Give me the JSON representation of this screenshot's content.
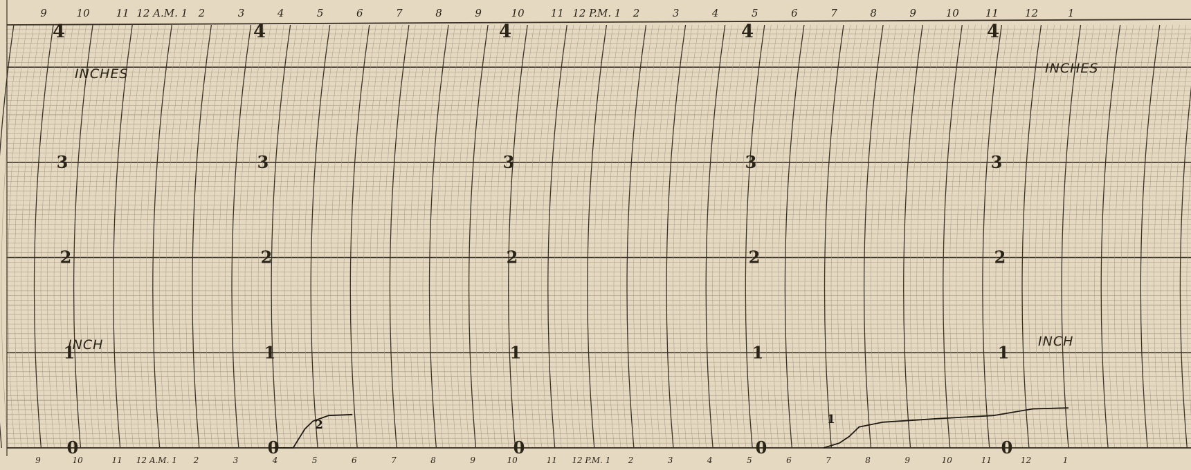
{
  "chart_data": {
    "type": "line",
    "title": "",
    "ylim": [
      0,
      4
    ],
    "grid": true,
    "colors": {
      "paper": "#e6d9c2",
      "grid_minor": "#a99c86",
      "grid_major": "#3a3226",
      "trace": "#1f1a12"
    },
    "hour_labels_top": [
      "9",
      "10",
      "11",
      "12 A.M. 1",
      "2",
      "3",
      "4",
      "5",
      "6",
      "7",
      "8",
      "9",
      "10",
      "11",
      "12 P.M. 1",
      "2",
      "3",
      "4",
      "5",
      "6",
      "7",
      "8",
      "9",
      "10",
      "11",
      "12",
      "1"
    ],
    "hour_labels_bottom": [
      "9",
      "10",
      "11",
      "12 A.M. 1",
      "2",
      "3",
      "4",
      "5",
      "6",
      "7",
      "8",
      "9",
      "10",
      "11",
      "12 P.M. 1",
      "2",
      "3",
      "4",
      "5",
      "6",
      "7",
      "8",
      "9",
      "10",
      "11",
      "12",
      "1"
    ],
    "scale_marks": [
      "0",
      "1",
      "2",
      "3",
      "4"
    ],
    "unit_labels": {
      "inches_left": "INCHES",
      "inches_right": "INCHES",
      "inch_left": "INCH",
      "inch_right": "INCH"
    },
    "series": [
      {
        "label": "2",
        "points": [
          [
            0,
            0
          ],
          [
            0.5,
            0
          ],
          [
            0.65,
            0.1
          ],
          [
            0.8,
            0.2
          ],
          [
            1.0,
            0.28
          ],
          [
            1.4,
            0.34
          ],
          [
            2.0,
            0.35
          ]
        ]
      },
      {
        "label": "1",
        "points": [
          [
            0,
            0
          ],
          [
            0.4,
            0.05
          ],
          [
            0.65,
            0.12
          ],
          [
            0.9,
            0.22
          ],
          [
            1.5,
            0.27
          ],
          [
            3.0,
            0.31
          ],
          [
            4.3,
            0.34
          ],
          [
            5.3,
            0.41
          ],
          [
            6.2,
            0.42
          ]
        ]
      }
    ]
  }
}
